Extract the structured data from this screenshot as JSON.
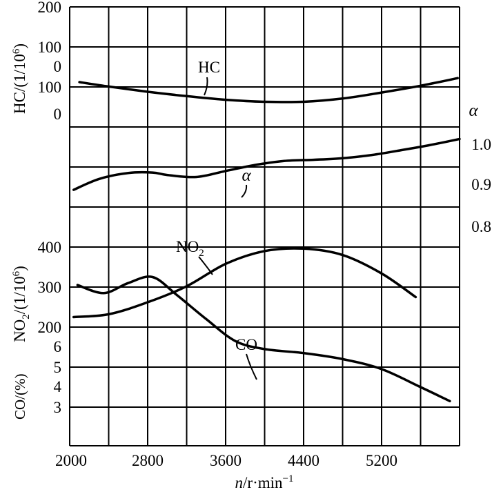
{
  "chart_data": {
    "type": "line",
    "xlabel": {
      "var": "n",
      "unit": "/r·min",
      "sup": "−1"
    },
    "x_ticks": [
      "2000",
      "2800",
      "3600",
      "4400",
      "5200"
    ],
    "xlim": [
      2000,
      6000
    ],
    "hc_axis": {
      "label": "HC/(1/10",
      "label_sup": "6",
      "label_end": ")",
      "ticks_upper": [
        "200",
        "100",
        "0"
      ],
      "ticks_lower": [
        "100",
        "0"
      ]
    },
    "alpha_axis": {
      "label": "α",
      "ticks": [
        "1.0",
        "0.9",
        "0.8"
      ]
    },
    "no2_axis": {
      "label": "NO",
      "label_sub": "2",
      "label_mid": "/(1/10",
      "label_sup": "6",
      "label_end": ")",
      "ticks": [
        "400",
        "300",
        "200"
      ]
    },
    "co_axis": {
      "label": "CO/(%)",
      "ticks": [
        "6",
        "5",
        "4",
        "3"
      ]
    },
    "series": [
      {
        "name": "HC",
        "x": [
          2100,
          2400,
          2800,
          3200,
          3600,
          4000,
          4400,
          4800,
          5200,
          5600,
          5980
        ],
        "y": [
          112,
          101,
          88,
          77,
          68,
          63,
          63,
          71,
          86,
          103,
          122
        ]
      },
      {
        "name": "α",
        "x": [
          2040,
          2300,
          2600,
          2850,
          3000,
          3300,
          3600,
          3900,
          4200,
          4500,
          4800,
          5100,
          5400,
          5700,
          6000
        ],
        "y": [
          0.843,
          0.87,
          0.885,
          0.886,
          0.88,
          0.875,
          0.89,
          0.905,
          0.915,
          0.918,
          0.922,
          0.93,
          0.942,
          0.955,
          0.97
        ]
      },
      {
        "name": "NO",
        "name_sub": "2",
        "x": [
          2040,
          2400,
          2800,
          3200,
          3600,
          4000,
          4400,
          4800,
          5200,
          5550
        ],
        "y": [
          225,
          232,
          262,
          302,
          358,
          390,
          396,
          380,
          334,
          275
        ]
      },
      {
        "name": "CO",
        "x": [
          2080,
          2350,
          2600,
          2850,
          3100,
          3400,
          3700,
          4000,
          4400,
          4800,
          5200,
          5600,
          5900
        ],
        "y": [
          6.05,
          5.85,
          6.1,
          6.25,
          5.8,
          5.2,
          4.65,
          4.45,
          4.35,
          4.2,
          3.95,
          3.5,
          3.15
        ]
      }
    ]
  }
}
